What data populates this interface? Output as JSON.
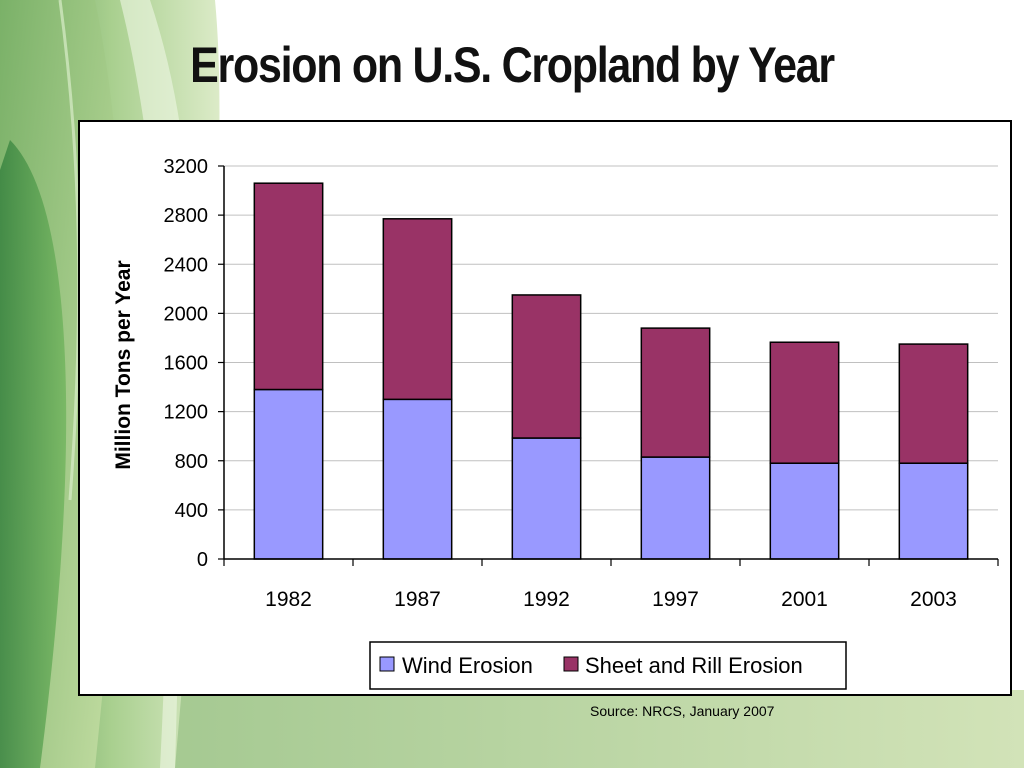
{
  "slide": {
    "title": "Erosion on U.S. Cropland by Year",
    "source": "Source: NRCS, January 2007"
  },
  "colors": {
    "wind": "#9999ff",
    "sheet_rill": "#993366",
    "gridline": "#c0c0c0"
  },
  "chart_data": {
    "type": "bar",
    "stacked": true,
    "categories": [
      "1982",
      "1987",
      "1992",
      "1997",
      "2001",
      "2003"
    ],
    "series": [
      {
        "name": "Wind Erosion",
        "values": [
          1380,
          1300,
          985,
          830,
          780,
          780
        ],
        "color": "#9999ff"
      },
      {
        "name": "Sheet and Rill Erosion",
        "values": [
          1680,
          1470,
          1165,
          1050,
          985,
          970
        ],
        "color": "#993366"
      }
    ],
    "ylabel": "Million Tons per Year",
    "xlabel": "",
    "ylim": [
      0,
      3200
    ],
    "yticks": [
      0,
      400,
      800,
      1200,
      1600,
      2000,
      2400,
      2800,
      3200
    ],
    "grid": true,
    "legend_position": "bottom"
  }
}
